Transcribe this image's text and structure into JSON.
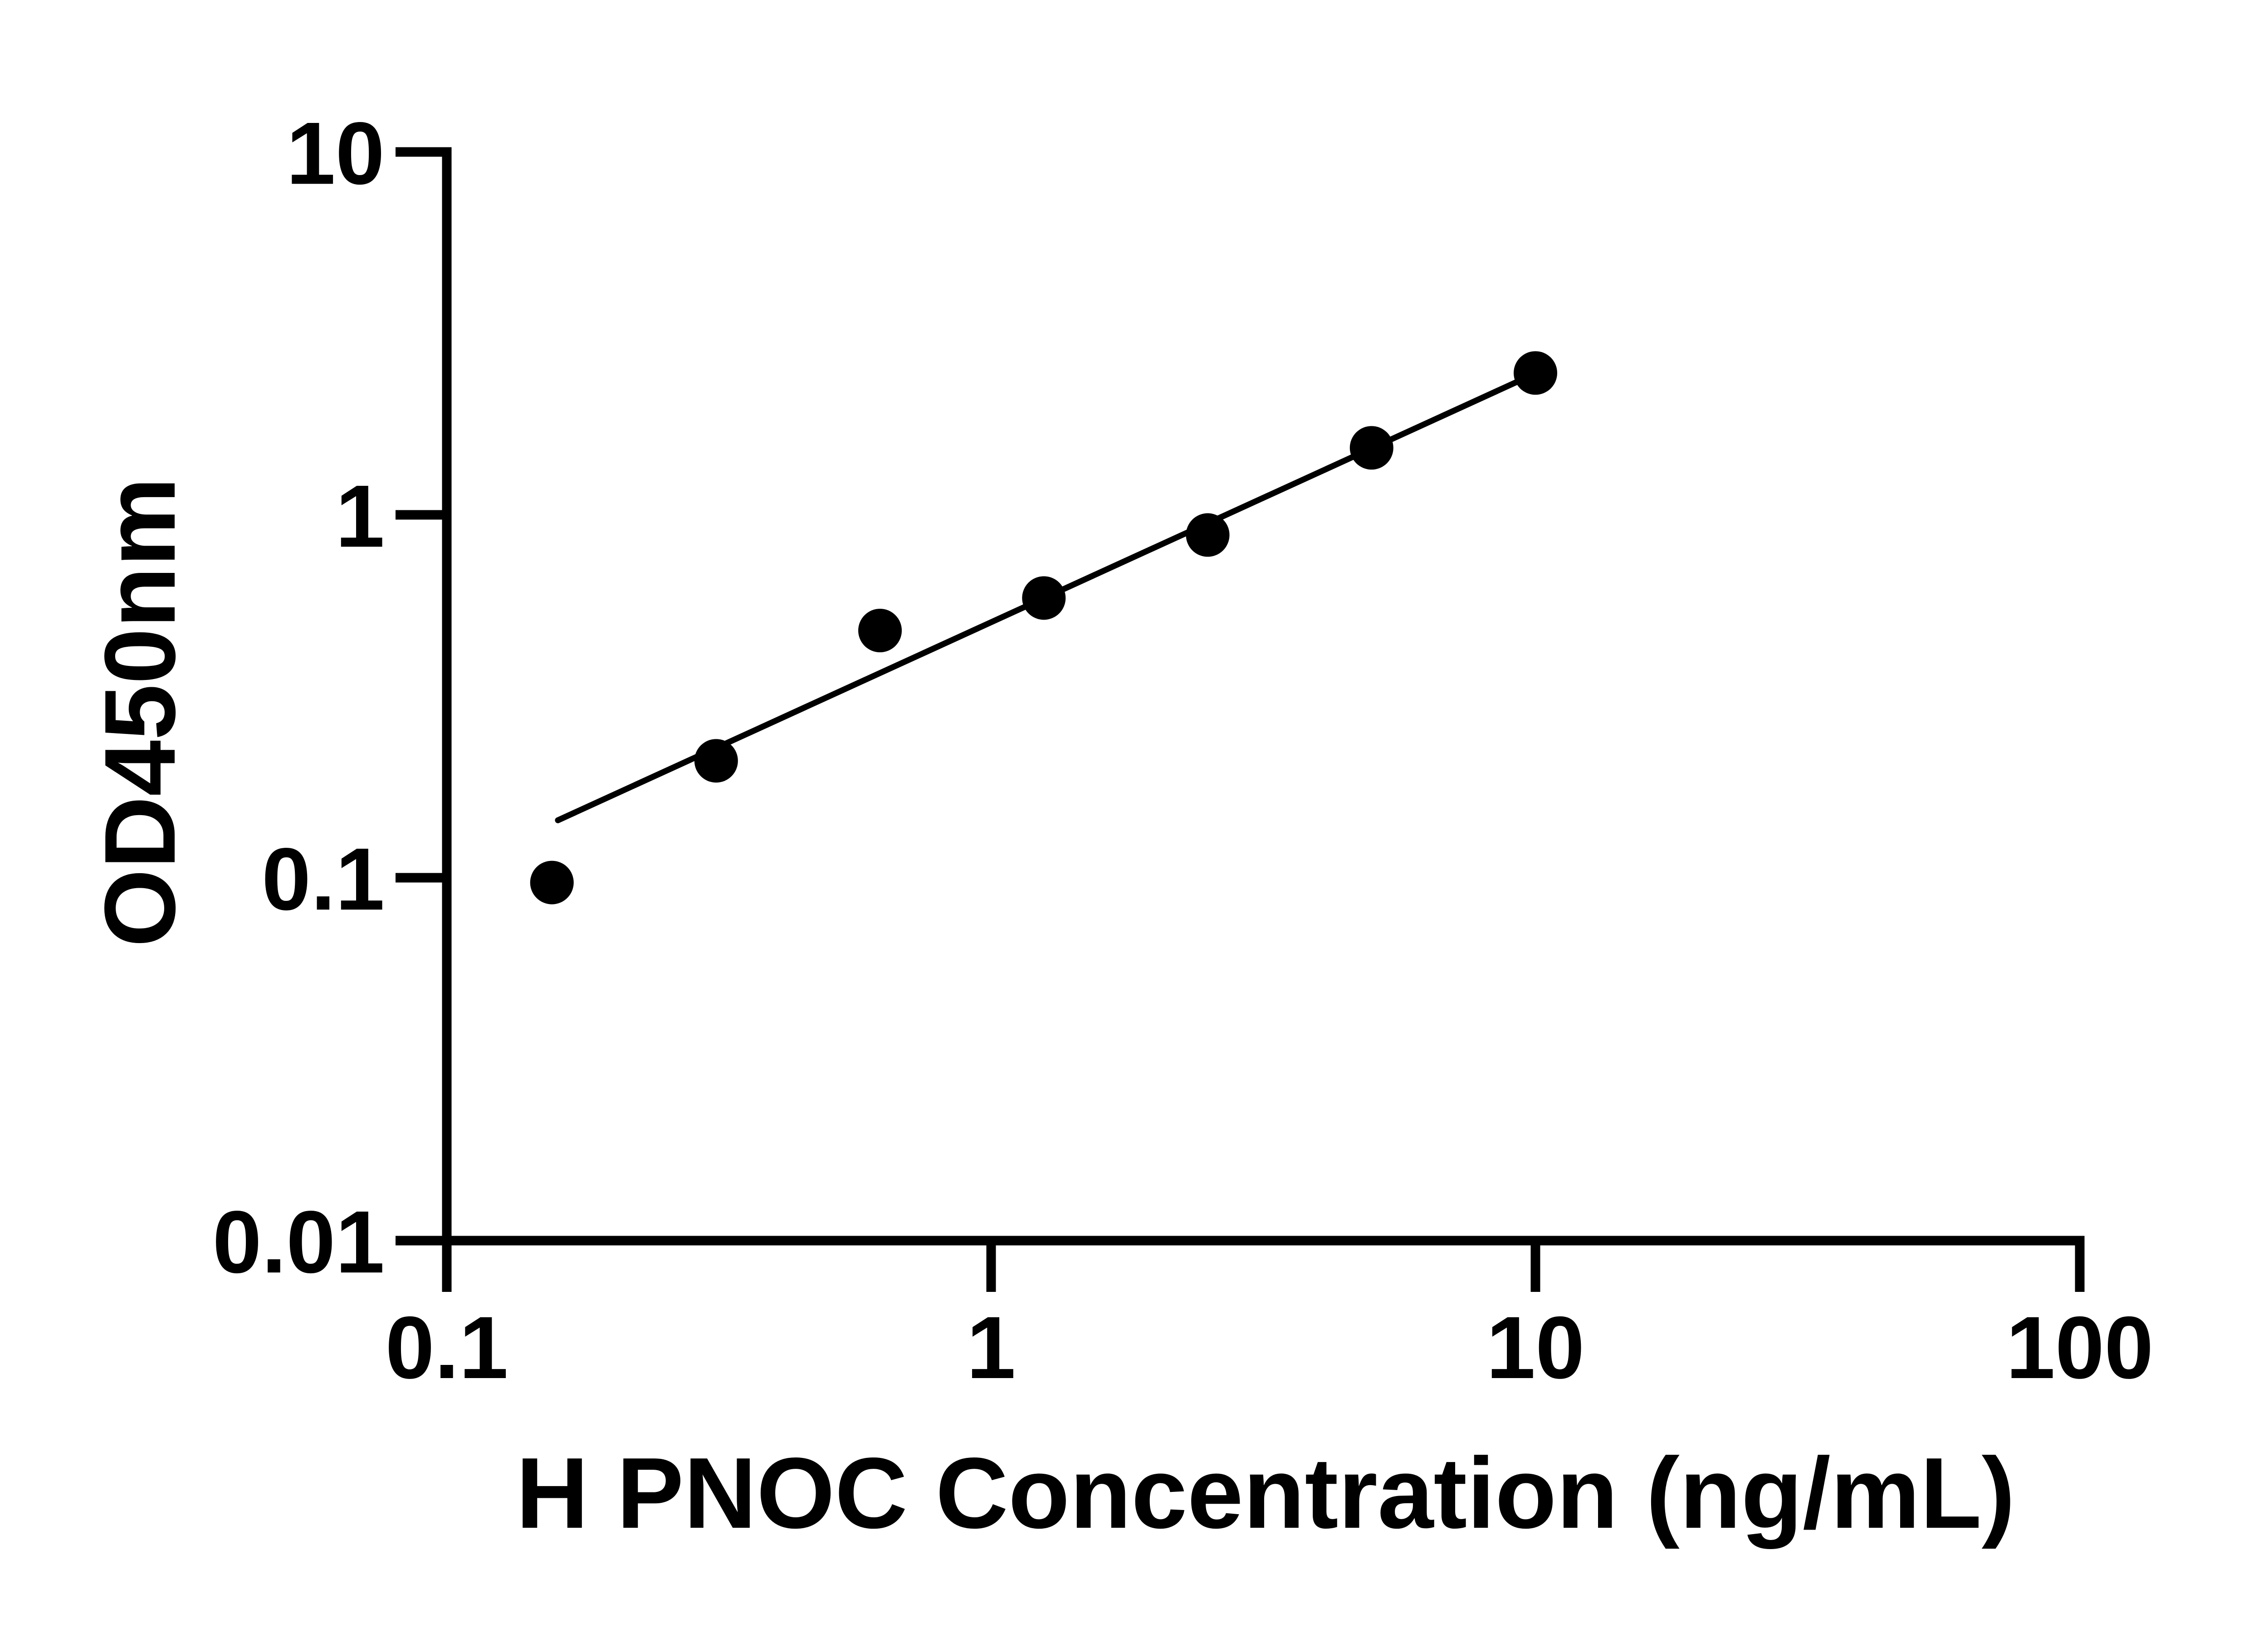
{
  "chart_data": {
    "type": "scatter",
    "title": "",
    "xlabel": "H PNOC Concentration (ng/mL)",
    "ylabel": "OD450nm",
    "x_scale": "log",
    "y_scale": "log",
    "xlim": [
      0.1,
      100
    ],
    "ylim": [
      0.01,
      10
    ],
    "x_ticks": [
      0.1,
      1,
      10,
      100
    ],
    "x_tick_labels": [
      "0.1",
      "1",
      "10",
      "100"
    ],
    "y_ticks": [
      0.01,
      0.1,
      1,
      10
    ],
    "y_tick_labels": [
      "0.01",
      "0.1",
      "1",
      "10"
    ],
    "grid": false,
    "legend": null,
    "marker_color": "#000000",
    "line_color": "#000000",
    "axis_color": "#000000",
    "background_color": "#ffffff",
    "points": [
      {
        "x": 0.156,
        "y": 0.097
      },
      {
        "x": 0.3125,
        "y": 0.21
      },
      {
        "x": 0.625,
        "y": 0.48
      },
      {
        "x": 1.25,
        "y": 0.59
      },
      {
        "x": 2.5,
        "y": 0.88
      },
      {
        "x": 5,
        "y": 1.53
      },
      {
        "x": 10,
        "y": 2.46
      }
    ],
    "trend_line": {
      "x1": 0.16,
      "y1": 0.144,
      "x2": 10.1,
      "y2": 2.47
    }
  }
}
